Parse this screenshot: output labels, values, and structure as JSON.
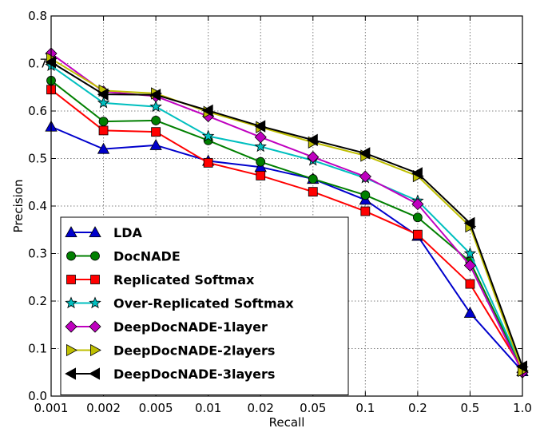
{
  "chart_data": {
    "type": "line",
    "title": "",
    "xlabel": "Recall",
    "ylabel": "Precision",
    "categories": [
      "0.001",
      "0.002",
      "0.005",
      "0.01",
      "0.02",
      "0.05",
      "0.1",
      "0.2",
      "0.5",
      "1.0"
    ],
    "x_scale": "categorical (log-like spacing)",
    "ylim": [
      0,
      0.8
    ],
    "yticks": [
      "0.0",
      "0.1",
      "0.2",
      "0.3",
      "0.4",
      "0.5",
      "0.6",
      "0.7",
      "0.8"
    ],
    "grid": true,
    "legend_position": "lower-left",
    "series": [
      {
        "name": "LDA",
        "color": "#0000cc",
        "marker": "triangle-up",
        "values": [
          0.567,
          0.52,
          0.528,
          0.495,
          0.482,
          0.457,
          0.413,
          0.337,
          0.175,
          0.052
        ]
      },
      {
        "name": "DocNADE",
        "color": "#007f00",
        "marker": "circle",
        "values": [
          0.664,
          0.578,
          0.58,
          0.538,
          0.493,
          0.457,
          0.423,
          0.376,
          0.283,
          0.056
        ]
      },
      {
        "name": "Replicated Softmax",
        "color": "#ff0000",
        "marker": "square",
        "values": [
          0.645,
          0.559,
          0.556,
          0.491,
          0.464,
          0.43,
          0.389,
          0.34,
          0.236,
          0.056
        ]
      },
      {
        "name": "Over-Replicated Softmax",
        "color": "#00bfbf",
        "marker": "star",
        "values": [
          0.695,
          0.617,
          0.609,
          0.547,
          0.525,
          0.496,
          0.459,
          0.411,
          0.3,
          0.058
        ]
      },
      {
        "name": "DeepDocNADE-1layer",
        "color": "#bf00bf",
        "marker": "diamond",
        "values": [
          0.721,
          0.641,
          0.631,
          0.589,
          0.545,
          0.503,
          0.462,
          0.404,
          0.275,
          0.05
        ]
      },
      {
        "name": "DeepDocNADE-2layers",
        "color": "#bfbf00",
        "marker": "triangle-right",
        "values": [
          0.71,
          0.643,
          0.637,
          0.598,
          0.566,
          0.534,
          0.506,
          0.463,
          0.357,
          0.053
        ]
      },
      {
        "name": "DeepDocNADE-3layers",
        "color": "#000000",
        "marker": "triangle-left",
        "values": [
          0.703,
          0.635,
          0.634,
          0.601,
          0.568,
          0.539,
          0.511,
          0.469,
          0.364,
          0.062
        ]
      }
    ]
  }
}
